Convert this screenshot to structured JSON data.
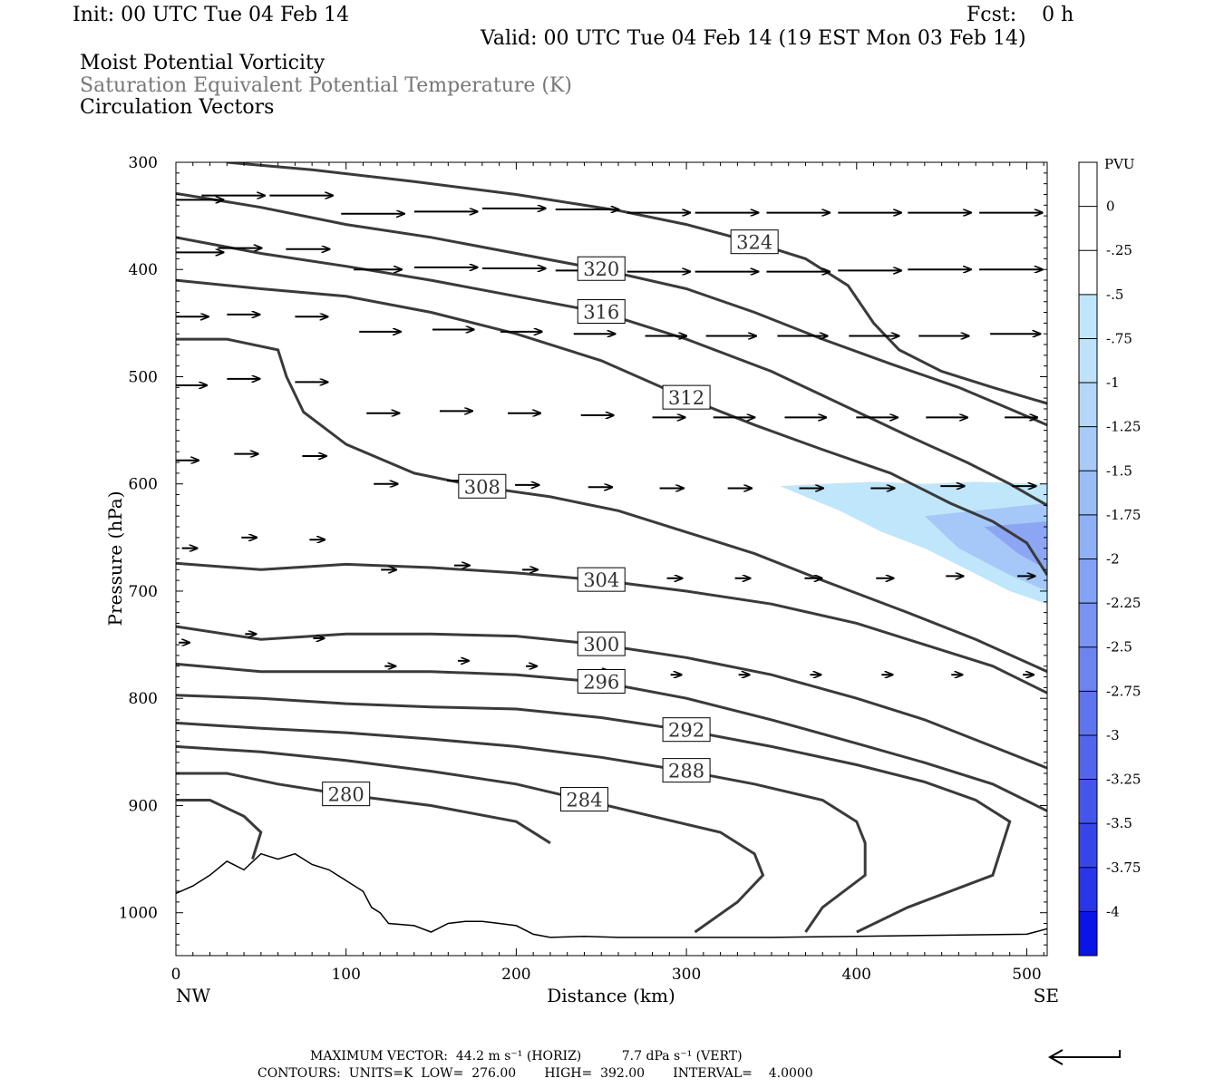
{
  "header": {
    "init": "Init: 00 UTC Tue 04 Feb 14",
    "fcst": "Fcst:    0 h",
    "valid": "Valid: 00 UTC Tue 04 Feb 14 (19 EST Mon 03 Feb 14)",
    "line1": "Moist Potential Vorticity",
    "line2": "Saturation Equivalent Potential Temperature (K)",
    "line3": "Circulation Vectors"
  },
  "colors": {
    "contour": "#3a3a3a",
    "pv_light": "#bfe6fb",
    "pv_mid": "#a5c8f8",
    "pv_dark": "#8ca6f4",
    "vector": "#000000"
  },
  "footer": {
    "max_vector": "MAXIMUM VECTOR:  44.2 m s⁻¹ (HORIZ)          7.7 dPa s⁻¹ (VERT)",
    "contours": "CONTOURS:  UNITS=K  LOW=  276.00       HIGH=  392.00       INTERVAL=    4.0000"
  },
  "chart_data": {
    "type": "contour",
    "xlabel": "Distance (km)",
    "ylabel": "Pressure (hPa)",
    "x_ticks": [
      "0",
      "100",
      "200",
      "300",
      "400",
      "500"
    ],
    "y_ticks": [
      "300",
      "400",
      "500",
      "600",
      "700",
      "800",
      "900",
      "1000"
    ],
    "x_end_labels": {
      "left": "NW",
      "right": "SE"
    },
    "xlim": [
      0,
      512
    ],
    "ylim": [
      300,
      1040
    ],
    "y_inverted": true,
    "colorbar": {
      "title": "PVU",
      "labels": [
        "0",
        "-.25",
        "-.5",
        "-.75",
        "-1",
        "-1.25",
        "-1.5",
        "-1.75",
        "-2",
        "-2.25",
        "-2.5",
        "-2.75",
        "-3",
        "-3.25",
        "-3.5",
        "-3.75",
        "-4"
      ],
      "colors": [
        "#ffffff",
        "#ffffff",
        "#bfe6fb",
        "#bfe1fa",
        "#b3d6f9",
        "#a7caf7",
        "#9bbdf6",
        "#8fb0f4",
        "#84a2f3",
        "#7893f1",
        "#6c84ef",
        "#5f75ee",
        "#5266ec",
        "#4556eb",
        "#3746e9",
        "#2836e8",
        "#0a14e6"
      ]
    },
    "contours": [
      {
        "label": "324",
        "points": [
          [
            30,
            300
          ],
          [
            80,
            307
          ],
          [
            140,
            318
          ],
          [
            200,
            330
          ],
          [
            260,
            345
          ],
          [
            300,
            358
          ],
          [
            340,
            375
          ],
          [
            370,
            390
          ],
          [
            395,
            415
          ],
          [
            410,
            450
          ],
          [
            425,
            475
          ],
          [
            450,
            495
          ],
          [
            480,
            510
          ],
          [
            512,
            525
          ]
        ]
      },
      {
        "label": "320",
        "points": [
          [
            0,
            329
          ],
          [
            50,
            342
          ],
          [
            100,
            358
          ],
          [
            150,
            370
          ],
          [
            200,
            385
          ],
          [
            250,
            400
          ],
          [
            300,
            418
          ],
          [
            340,
            440
          ],
          [
            380,
            465
          ],
          [
            420,
            488
          ],
          [
            460,
            510
          ],
          [
            490,
            530
          ],
          [
            512,
            545
          ]
        ]
      },
      {
        "label": "316",
        "points": [
          [
            0,
            370
          ],
          [
            50,
            385
          ],
          [
            100,
            397
          ],
          [
            150,
            410
          ],
          [
            200,
            425
          ],
          [
            250,
            440
          ],
          [
            300,
            465
          ],
          [
            350,
            495
          ],
          [
            390,
            525
          ],
          [
            430,
            555
          ],
          [
            465,
            580
          ],
          [
            490,
            600
          ],
          [
            512,
            620
          ]
        ]
      },
      {
        "label": "312",
        "points": [
          [
            0,
            410
          ],
          [
            50,
            418
          ],
          [
            100,
            425
          ],
          [
            150,
            440
          ],
          [
            200,
            460
          ],
          [
            250,
            485
          ],
          [
            300,
            520
          ],
          [
            340,
            545
          ],
          [
            380,
            568
          ],
          [
            420,
            590
          ],
          [
            455,
            618
          ],
          [
            480,
            635
          ],
          [
            500,
            655
          ],
          [
            512,
            685
          ]
        ]
      },
      {
        "label": "308",
        "points": [
          [
            0,
            465
          ],
          [
            30,
            465
          ],
          [
            60,
            475
          ],
          [
            65,
            500
          ],
          [
            75,
            533
          ],
          [
            100,
            563
          ],
          [
            140,
            590
          ],
          [
            180,
            603
          ],
          [
            220,
            612
          ],
          [
            260,
            625
          ],
          [
            300,
            645
          ],
          [
            340,
            665
          ],
          [
            380,
            690
          ],
          [
            430,
            720
          ],
          [
            470,
            745
          ],
          [
            512,
            775
          ]
        ]
      },
      {
        "label": "304",
        "points": [
          [
            0,
            674
          ],
          [
            50,
            680
          ],
          [
            100,
            675
          ],
          [
            150,
            678
          ],
          [
            200,
            683
          ],
          [
            250,
            690
          ],
          [
            300,
            700
          ],
          [
            350,
            712
          ],
          [
            400,
            730
          ],
          [
            440,
            750
          ],
          [
            480,
            770
          ],
          [
            512,
            795
          ]
        ]
      },
      {
        "label": "300",
        "points": [
          [
            0,
            733
          ],
          [
            50,
            745
          ],
          [
            100,
            740
          ],
          [
            150,
            740
          ],
          [
            200,
            742
          ],
          [
            250,
            750
          ],
          [
            300,
            762
          ],
          [
            350,
            778
          ],
          [
            400,
            800
          ],
          [
            440,
            820
          ],
          [
            480,
            845
          ],
          [
            512,
            865
          ]
        ]
      },
      {
        "label": "296",
        "points": [
          [
            0,
            768
          ],
          [
            50,
            775
          ],
          [
            100,
            775
          ],
          [
            150,
            775
          ],
          [
            200,
            778
          ],
          [
            250,
            785
          ],
          [
            300,
            800
          ],
          [
            350,
            820
          ],
          [
            400,
            842
          ],
          [
            440,
            860
          ],
          [
            480,
            880
          ],
          [
            512,
            905
          ]
        ]
      },
      {
        "label": "292",
        "points": [
          [
            0,
            797
          ],
          [
            50,
            800
          ],
          [
            100,
            805
          ],
          [
            150,
            808
          ],
          [
            200,
            810
          ],
          [
            250,
            818
          ],
          [
            300,
            830
          ],
          [
            350,
            845
          ],
          [
            400,
            862
          ],
          [
            440,
            878
          ],
          [
            470,
            895
          ],
          [
            490,
            915
          ],
          [
            480,
            965
          ],
          [
            430,
            995
          ],
          [
            400,
            1018
          ]
        ]
      },
      {
        "label": "288",
        "points": [
          [
            0,
            823
          ],
          [
            50,
            828
          ],
          [
            100,
            832
          ],
          [
            150,
            838
          ],
          [
            200,
            845
          ],
          [
            250,
            855
          ],
          [
            300,
            868
          ],
          [
            340,
            880
          ],
          [
            380,
            895
          ],
          [
            400,
            915
          ],
          [
            405,
            935
          ],
          [
            405,
            965
          ],
          [
            380,
            995
          ],
          [
            370,
            1018
          ]
        ]
      },
      {
        "label": "284",
        "points": [
          [
            0,
            845
          ],
          [
            50,
            850
          ],
          [
            100,
            858
          ],
          [
            150,
            868
          ],
          [
            200,
            880
          ],
          [
            240,
            895
          ],
          [
            280,
            910
          ],
          [
            320,
            925
          ],
          [
            340,
            945
          ],
          [
            345,
            965
          ],
          [
            330,
            990
          ],
          [
            305,
            1018
          ]
        ]
      },
      {
        "label": "280",
        "points": [
          [
            0,
            870
          ],
          [
            30,
            870
          ],
          [
            60,
            880
          ],
          [
            100,
            890
          ],
          [
            150,
            900
          ],
          [
            200,
            915
          ],
          [
            220,
            935
          ]
        ]
      },
      {
        "label": "",
        "points": [
          [
            0,
            895
          ],
          [
            20,
            895
          ],
          [
            40,
            910
          ],
          [
            50,
            925
          ],
          [
            45,
            950
          ]
        ]
      }
    ],
    "surface": [
      [
        0,
        982
      ],
      [
        10,
        975
      ],
      [
        20,
        965
      ],
      [
        30,
        952
      ],
      [
        40,
        960
      ],
      [
        50,
        945
      ],
      [
        60,
        950
      ],
      [
        70,
        945
      ],
      [
        80,
        955
      ],
      [
        90,
        960
      ],
      [
        100,
        970
      ],
      [
        110,
        980
      ],
      [
        115,
        995
      ],
      [
        120,
        1000
      ],
      [
        125,
        1010
      ],
      [
        140,
        1012
      ],
      [
        150,
        1018
      ],
      [
        160,
        1010
      ],
      [
        170,
        1008
      ],
      [
        180,
        1008
      ],
      [
        190,
        1010
      ],
      [
        200,
        1012
      ],
      [
        210,
        1020
      ],
      [
        220,
        1023
      ],
      [
        240,
        1022
      ],
      [
        260,
        1023
      ],
      [
        300,
        1023
      ],
      [
        350,
        1023
      ],
      [
        400,
        1022
      ],
      [
        450,
        1021
      ],
      [
        500,
        1020
      ],
      [
        512,
        1015
      ]
    ],
    "pv_shading": {
      "light": [
        [
          355,
          602
        ],
        [
          380,
          600
        ],
        [
          410,
          598
        ],
        [
          440,
          600
        ],
        [
          470,
          598
        ],
        [
          512,
          600
        ],
        [
          512,
          712
        ],
        [
          490,
          700
        ],
        [
          465,
          680
        ],
        [
          440,
          660
        ],
        [
          415,
          645
        ],
        [
          390,
          625
        ],
        [
          370,
          612
        ]
      ],
      "mid": [
        [
          440,
          630
        ],
        [
          470,
          625
        ],
        [
          512,
          618
        ],
        [
          512,
          700
        ],
        [
          490,
          685
        ],
        [
          460,
          660
        ]
      ],
      "dark": [
        [
          475,
          640
        ],
        [
          512,
          635
        ],
        [
          512,
          680
        ],
        [
          495,
          665
        ]
      ]
    },
    "vectors": [
      [
        23,
        335,
        23
      ],
      [
        46,
        331,
        29
      ],
      [
        86,
        331,
        29
      ],
      [
        128,
        348,
        29
      ],
      [
        171,
        346,
        29
      ],
      [
        211,
        343,
        29
      ],
      [
        254,
        344,
        29
      ],
      [
        296,
        347,
        29
      ],
      [
        336,
        347,
        29
      ],
      [
        378,
        347,
        29
      ],
      [
        420,
        347,
        29
      ],
      [
        461,
        347,
        29
      ],
      [
        503,
        347,
        29
      ],
      [
        23,
        384,
        23
      ],
      [
        46,
        380,
        20
      ],
      [
        86,
        381,
        20
      ],
      [
        128,
        400,
        22
      ],
      [
        171,
        398,
        29
      ],
      [
        211,
        399,
        29
      ],
      [
        254,
        401,
        29
      ],
      [
        296,
        402,
        29
      ],
      [
        336,
        402,
        29
      ],
      [
        378,
        402,
        29
      ],
      [
        420,
        401,
        29
      ],
      [
        461,
        400,
        29
      ],
      [
        503,
        400,
        29
      ],
      [
        15,
        444,
        19
      ],
      [
        46,
        442,
        15
      ],
      [
        86,
        444,
        15
      ],
      [
        128,
        458,
        19
      ],
      [
        171,
        456,
        19
      ],
      [
        211,
        458,
        19
      ],
      [
        254,
        460,
        19
      ],
      [
        296,
        462,
        19
      ],
      [
        336,
        462,
        23
      ],
      [
        378,
        462,
        23
      ],
      [
        420,
        462,
        23
      ],
      [
        461,
        462,
        23
      ],
      [
        503,
        460,
        23
      ],
      [
        15,
        508,
        15
      ],
      [
        46,
        502,
        15
      ],
      [
        86,
        505,
        15
      ],
      [
        128,
        534,
        15
      ],
      [
        171,
        532,
        15
      ],
      [
        211,
        534,
        15
      ],
      [
        254,
        536,
        15
      ],
      [
        296,
        538,
        15
      ],
      [
        336,
        538,
        19
      ],
      [
        378,
        538,
        19
      ],
      [
        420,
        538,
        19
      ],
      [
        461,
        538,
        19
      ],
      [
        503,
        538,
        15
      ],
      [
        11,
        578,
        11
      ],
      [
        46,
        572,
        11
      ],
      [
        86,
        574,
        11
      ],
      [
        128,
        600,
        11
      ],
      [
        171,
        597,
        11
      ],
      [
        211,
        601,
        11
      ],
      [
        254,
        603,
        11
      ],
      [
        296,
        604,
        11
      ],
      [
        336,
        604,
        11
      ],
      [
        378,
        604,
        11
      ],
      [
        420,
        604,
        11
      ],
      [
        461,
        602,
        11
      ],
      [
        503,
        602,
        11
      ],
      [
        11,
        660,
        7
      ],
      [
        46,
        650,
        7
      ],
      [
        86,
        652,
        7
      ],
      [
        128,
        680,
        7
      ],
      [
        171,
        676,
        7
      ],
      [
        211,
        680,
        7
      ],
      [
        254,
        685,
        7
      ],
      [
        296,
        688,
        7
      ],
      [
        336,
        688,
        7
      ],
      [
        378,
        688,
        8
      ],
      [
        420,
        688,
        8
      ],
      [
        461,
        686,
        8
      ],
      [
        503,
        686,
        8
      ],
      [
        7,
        748,
        5
      ],
      [
        46,
        740,
        5
      ],
      [
        86,
        744,
        5
      ],
      [
        128,
        770,
        5
      ],
      [
        171,
        765,
        5
      ],
      [
        211,
        770,
        5
      ],
      [
        254,
        775,
        5
      ],
      [
        296,
        778,
        5
      ],
      [
        336,
        778,
        5
      ],
      [
        378,
        778,
        5
      ],
      [
        420,
        778,
        5
      ],
      [
        461,
        778,
        5
      ],
      [
        503,
        778,
        5
      ]
    ]
  }
}
